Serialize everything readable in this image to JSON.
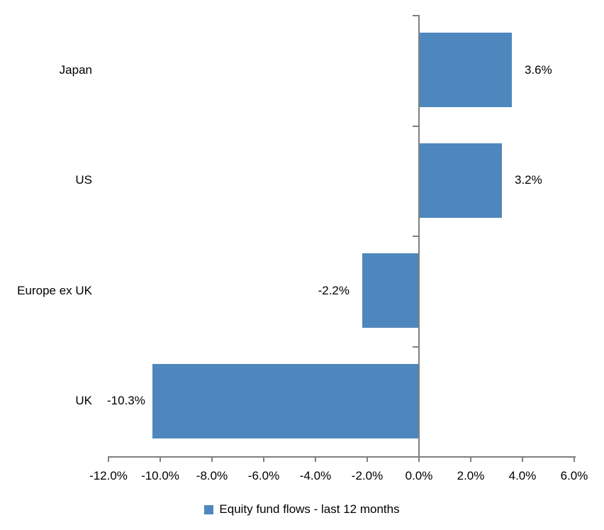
{
  "chart_data": {
    "type": "bar",
    "orientation": "horizontal",
    "title": "",
    "xlabel": "",
    "ylabel": "",
    "categories": [
      "Japan",
      "US",
      "Europe ex UK",
      "UK"
    ],
    "values": [
      3.6,
      3.2,
      -2.2,
      -10.3
    ],
    "data_labels": [
      "3.6%",
      "3.2%",
      "-2.2%",
      "-10.3%"
    ],
    "series": [
      {
        "name": "Equity fund flows - last 12 months",
        "values": [
          3.6,
          3.2,
          -2.2,
          -10.3
        ]
      }
    ],
    "xlim": [
      -12,
      6
    ],
    "x_tick_step": 2,
    "x_tick_values": [
      -12,
      -10,
      -8,
      -6,
      -4,
      -2,
      0,
      2,
      4,
      6
    ],
    "x_tick_labels": [
      "-12.0%",
      "-10.0%",
      "-8.0%",
      "-6.0%",
      "-4.0%",
      "-2.0%",
      "0.0%",
      "2.0%",
      "4.0%",
      "6.0%"
    ],
    "grid": false,
    "legend_position": "bottom",
    "colors": {
      "bar": "#4E87BD",
      "axis": "#808080",
      "text": "#000000",
      "background": "#FFFFFF"
    }
  },
  "legend": {
    "label": "Equity fund flows - last 12 months",
    "swatch_icon": "square-icon"
  }
}
